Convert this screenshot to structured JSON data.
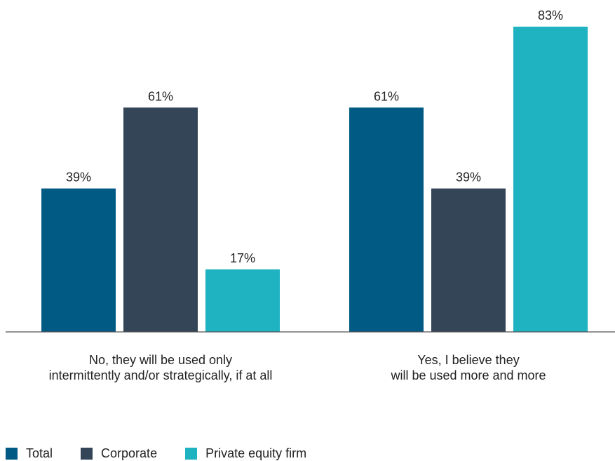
{
  "chart_data": {
    "type": "bar",
    "categories": [
      [
        "No, they will be used only",
        "intermittently and/or strategically, if at all"
      ],
      [
        "Yes, I believe they",
        "will be used more and more"
      ]
    ],
    "series": [
      {
        "name": "Total",
        "values": [
          39,
          61
        ],
        "labels": [
          "39%",
          "61%"
        ],
        "color": "#005a84"
      },
      {
        "name": "Corporate",
        "values": [
          61,
          39
        ],
        "labels": [
          "61%",
          "39%"
        ],
        "color": "#354558"
      },
      {
        "name": "Private equity firm",
        "values": [
          17,
          83
        ],
        "labels": [
          "17%",
          "83%"
        ],
        "color": "#1fb3c1"
      }
    ],
    "title": "",
    "xlabel": "",
    "ylabel": "",
    "ylim": [
      0,
      83
    ],
    "value_unit": "%",
    "grid": false,
    "legend_position": "bottom-left"
  }
}
